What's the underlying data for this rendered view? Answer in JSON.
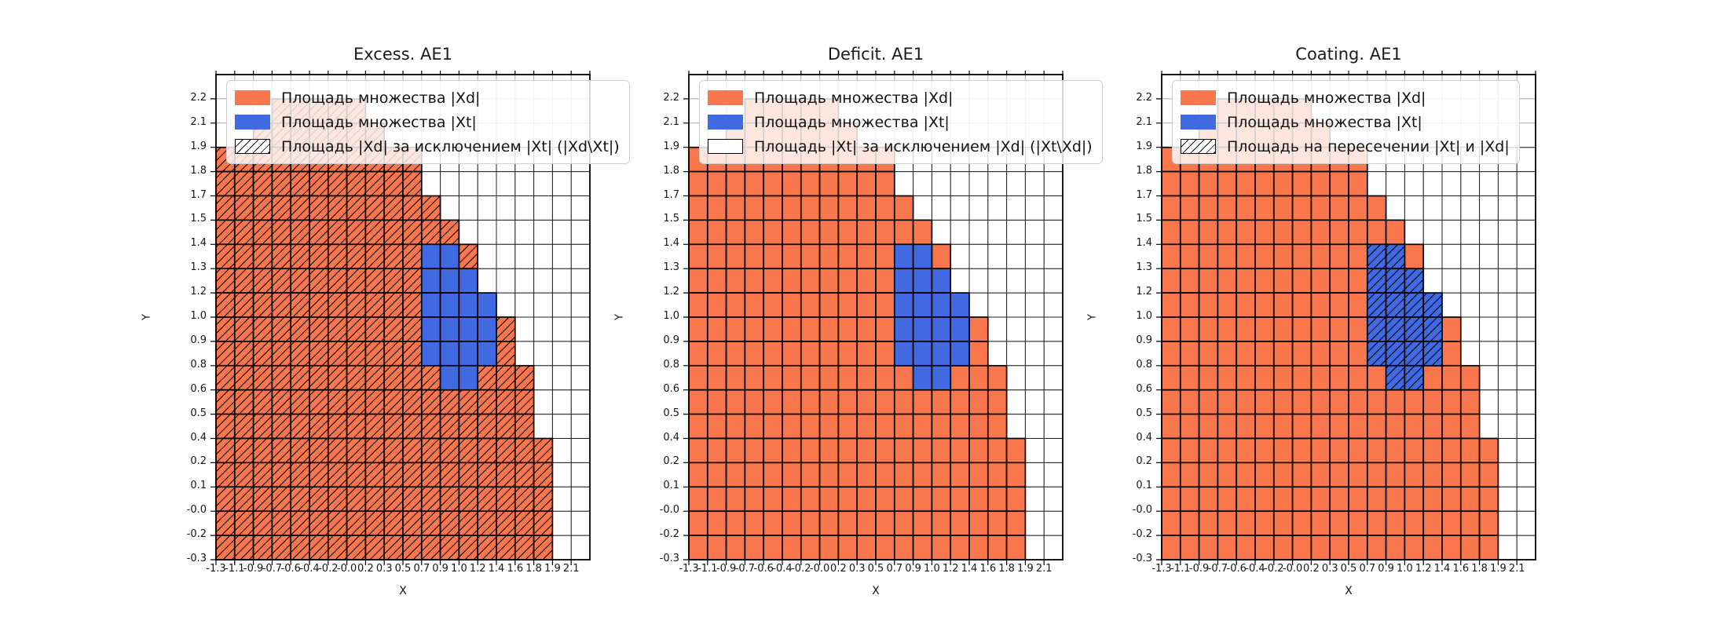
{
  "figure": {
    "background": "#ffffff"
  },
  "chart_data": {
    "type": "heatmap",
    "xlabel": "X",
    "ylabel": "Y",
    "grid_cols": 20,
    "grid_rows": 20,
    "x_tick_labels": [
      "-1.3",
      "-1.1",
      "-0.9",
      "-0.7",
      "-0.6",
      "-0.4",
      "-0.2",
      "-0.0",
      "0.2",
      "0.3",
      "0.5",
      "0.7",
      "0.9",
      "1.0",
      "1.2",
      "1.4",
      "1.6",
      "1.8",
      "1.9",
      "2.1"
    ],
    "y_tick_labels": [
      "2.2",
      "2.1",
      "1.9",
      "1.8",
      "1.7",
      "1.5",
      "1.4",
      "1.3",
      "1.2",
      "1.0",
      "0.9",
      "0.8",
      "0.6",
      "0.5",
      "0.4",
      "0.2",
      "0.1",
      "-0.0",
      "-0.2",
      "-0.3"
    ],
    "colors": {
      "xd": "#fa764c",
      "xt": "#4169e1",
      "hatch": "#000000",
      "grid_line": "#a8a8a8",
      "cell_edge": "#1f1f1f"
    },
    "xd_row_ranges": [
      [
        1,
        3,
        7
      ],
      [
        2,
        2,
        8
      ],
      [
        3,
        0,
        10
      ],
      [
        4,
        0,
        10
      ],
      [
        5,
        0,
        11
      ],
      [
        6,
        0,
        12
      ],
      [
        7,
        0,
        13
      ],
      [
        8,
        0,
        13
      ],
      [
        9,
        0,
        14
      ],
      [
        10,
        0,
        15
      ],
      [
        11,
        0,
        15
      ],
      [
        12,
        0,
        16
      ],
      [
        13,
        0,
        16
      ],
      [
        14,
        0,
        16
      ],
      [
        15,
        0,
        17
      ],
      [
        16,
        0,
        17
      ],
      [
        17,
        0,
        17
      ],
      [
        18,
        0,
        17
      ],
      [
        19,
        0,
        17
      ]
    ],
    "xt_cells": [
      [
        7,
        11
      ],
      [
        7,
        12
      ],
      [
        8,
        11
      ],
      [
        8,
        12
      ],
      [
        8,
        13
      ],
      [
        9,
        11
      ],
      [
        9,
        12
      ],
      [
        9,
        13
      ],
      [
        9,
        14
      ],
      [
        10,
        11
      ],
      [
        10,
        12
      ],
      [
        10,
        13
      ],
      [
        10,
        14
      ],
      [
        11,
        11
      ],
      [
        11,
        12
      ],
      [
        11,
        13
      ],
      [
        11,
        14
      ],
      [
        12,
        12
      ],
      [
        12,
        13
      ]
    ],
    "subplots": [
      {
        "title": "Excess. AE1",
        "hatch_region": "xd",
        "legend": [
          {
            "label": "Площадь множества |Xd|",
            "swatch": "orange"
          },
          {
            "label": "Площадь множества  |Xt|",
            "swatch": "blue"
          },
          {
            "label": "Площадь |Xd| за исключением |Xt| (|Xd\\Xt|)",
            "swatch": "hatch"
          }
        ]
      },
      {
        "title": "Deficit. AE1",
        "hatch_region": "none",
        "legend": [
          {
            "label": "Площадь множества |Xd|",
            "swatch": "orange"
          },
          {
            "label": "Площадь множества  |Xt|",
            "swatch": "blue"
          },
          {
            "label": "Площадь |Xt| за исключением |Xd| (|Xt\\Xd|)",
            "swatch": "empty"
          }
        ]
      },
      {
        "title": "Coating. AE1",
        "hatch_region": "xt",
        "legend": [
          {
            "label": "Площадь множества |Xd|",
            "swatch": "orange"
          },
          {
            "label": "Площадь множества  |Xt|",
            "swatch": "blue"
          },
          {
            "label": "Площадь на пересечении |Xt| и |Xd|",
            "swatch": "hatch"
          }
        ]
      }
    ]
  }
}
